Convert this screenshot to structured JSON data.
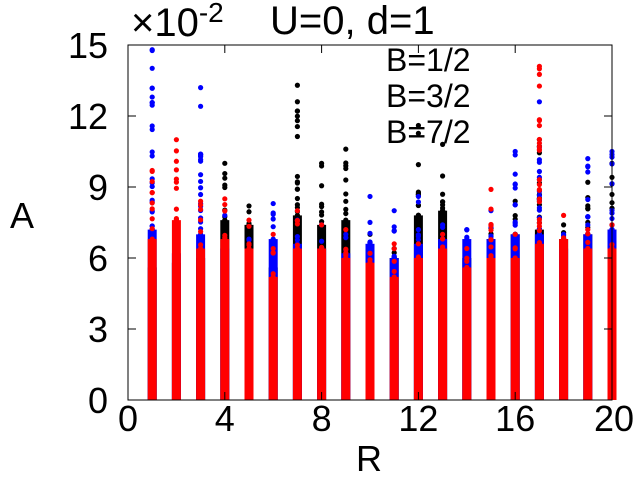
{
  "chart_data": {
    "type": "scatter",
    "title": "U=0, d=1",
    "scale_label": "×10",
    "scale_exponent": "-2",
    "xlabel": "R",
    "ylabel": "A",
    "xlim": [
      0,
      20
    ],
    "ylim": [
      0,
      15
    ],
    "x_ticks": [
      0,
      4,
      8,
      12,
      16,
      20
    ],
    "y_ticks": [
      0,
      3,
      6,
      9,
      12,
      15
    ],
    "grid": false,
    "legend_position": "top-center",
    "series": [
      {
        "name": "B=1/2",
        "color": "#ff0000",
        "columns": [
          {
            "x": 1,
            "max": 9.7,
            "dense": 6.8
          },
          {
            "x": 2,
            "max": 11.0,
            "dense": 7.6
          },
          {
            "x": 3,
            "max": 8.4,
            "dense": 6.4
          },
          {
            "x": 4,
            "max": 8.5,
            "dense": 6.8
          },
          {
            "x": 5,
            "max": 7.6,
            "dense": 6.4
          },
          {
            "x": 6,
            "max": 7.0,
            "dense": 5.2
          },
          {
            "x": 7,
            "max": 8.0,
            "dense": 6.4
          },
          {
            "x": 8,
            "max": 7.4,
            "dense": 6.4
          },
          {
            "x": 9,
            "max": 7.2,
            "dense": 6.0
          },
          {
            "x": 10,
            "max": 6.2,
            "dense": 5.8
          },
          {
            "x": 11,
            "max": 6.6,
            "dense": 5.2
          },
          {
            "x": 12,
            "max": 6.6,
            "dense": 6.0
          },
          {
            "x": 13,
            "max": 7.0,
            "dense": 6.4
          },
          {
            "x": 14,
            "max": 6.4,
            "dense": 5.6
          },
          {
            "x": 15,
            "max": 8.9,
            "dense": 6.0
          },
          {
            "x": 16,
            "max": 7.0,
            "dense": 6.0
          },
          {
            "x": 17,
            "max": 14.1,
            "dense": 6.6
          },
          {
            "x": 18,
            "max": 7.8,
            "dense": 6.8
          },
          {
            "x": 19,
            "max": 7.2,
            "dense": 6.4
          },
          {
            "x": 20,
            "max": 7.4,
            "dense": 6.4
          }
        ]
      },
      {
        "name": "B=3/2",
        "color": "#0000ff",
        "columns": [
          {
            "x": 1,
            "max": 14.8,
            "dense": 7.2
          },
          {
            "x": 2,
            "max": 7.0,
            "dense": 6.2
          },
          {
            "x": 3,
            "max": 13.2,
            "dense": 7.0
          },
          {
            "x": 4,
            "max": 7.8,
            "dense": 6.4
          },
          {
            "x": 5,
            "max": 6.8,
            "dense": 6.0
          },
          {
            "x": 6,
            "max": 8.3,
            "dense": 6.8
          },
          {
            "x": 7,
            "max": 7.6,
            "dense": 6.6
          },
          {
            "x": 8,
            "max": 7.4,
            "dense": 6.4
          },
          {
            "x": 9,
            "max": 7.0,
            "dense": 6.2
          },
          {
            "x": 10,
            "max": 8.6,
            "dense": 6.6
          },
          {
            "x": 11,
            "max": 8.0,
            "dense": 6.0
          },
          {
            "x": 12,
            "max": 8.6,
            "dense": 6.6
          },
          {
            "x": 13,
            "max": 7.4,
            "dense": 6.8
          },
          {
            "x": 14,
            "max": 7.2,
            "dense": 6.8
          },
          {
            "x": 15,
            "max": 8.0,
            "dense": 6.8
          },
          {
            "x": 16,
            "max": 10.5,
            "dense": 7.0
          },
          {
            "x": 17,
            "max": 12.6,
            "dense": 7.0
          },
          {
            "x": 18,
            "max": 7.0,
            "dense": 6.4
          },
          {
            "x": 19,
            "max": 10.2,
            "dense": 7.0
          },
          {
            "x": 20,
            "max": 10.5,
            "dense": 7.2
          }
        ]
      },
      {
        "name": "B=7/2",
        "color": "#000000",
        "columns": [
          {
            "x": 1,
            "max": 6.0,
            "dense": 5.6
          },
          {
            "x": 2,
            "max": 6.4,
            "dense": 5.8
          },
          {
            "x": 3,
            "max": 6.6,
            "dense": 6.0
          },
          {
            "x": 4,
            "max": 10.0,
            "dense": 7.6
          },
          {
            "x": 5,
            "max": 8.2,
            "dense": 7.4
          },
          {
            "x": 6,
            "max": 6.2,
            "dense": 5.6
          },
          {
            "x": 7,
            "max": 13.3,
            "dense": 7.8
          },
          {
            "x": 8,
            "max": 10.0,
            "dense": 7.4
          },
          {
            "x": 9,
            "max": 10.6,
            "dense": 7.6
          },
          {
            "x": 10,
            "max": 7.0,
            "dense": 6.4
          },
          {
            "x": 11,
            "max": 6.4,
            "dense": 6.0
          },
          {
            "x": 12,
            "max": 11.6,
            "dense": 7.8
          },
          {
            "x": 13,
            "max": 10.8,
            "dense": 8.0
          },
          {
            "x": 14,
            "max": 6.6,
            "dense": 6.0
          },
          {
            "x": 15,
            "max": 7.4,
            "dense": 6.8
          },
          {
            "x": 16,
            "max": 8.4,
            "dense": 7.0
          },
          {
            "x": 17,
            "max": 11.0,
            "dense": 7.2
          },
          {
            "x": 18,
            "max": 7.4,
            "dense": 6.8
          },
          {
            "x": 19,
            "max": 9.2,
            "dense": 7.0
          },
          {
            "x": 20,
            "max": 10.0,
            "dense": 7.2
          }
        ]
      }
    ]
  }
}
